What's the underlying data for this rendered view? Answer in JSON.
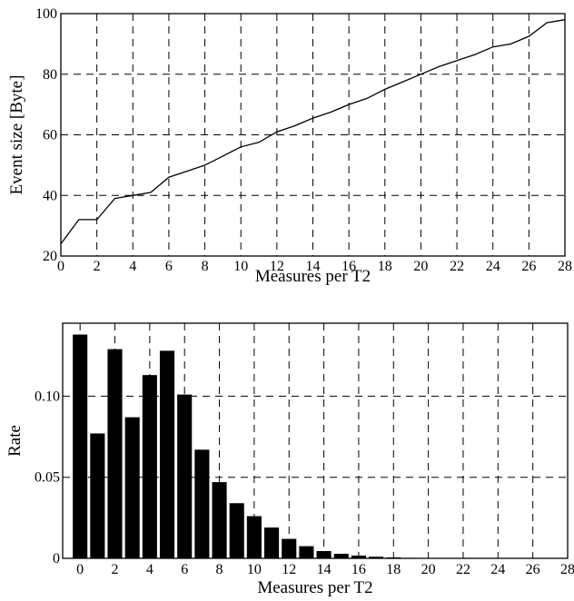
{
  "chart_data": [
    {
      "type": "line",
      "xlabel": "Measures per T2",
      "ylabel": "Event size [Byte]",
      "xlim": [
        0,
        28
      ],
      "ylim": [
        20,
        100
      ],
      "xticks": [
        "0",
        "2",
        "4",
        "6",
        "8",
        "10",
        "12",
        "14",
        "16",
        "18",
        "20",
        "22",
        "24",
        "26",
        "28"
      ],
      "yticks": [
        "20",
        "40",
        "60",
        "80",
        "100"
      ],
      "grid": true,
      "grid_style": "dashed",
      "x": [
        0,
        1,
        2,
        3,
        4,
        5,
        6,
        7,
        8,
        9,
        10,
        11,
        12,
        13,
        14,
        15,
        16,
        17,
        18,
        19,
        20,
        21,
        22,
        23,
        24,
        25,
        26,
        27,
        28
      ],
      "y": [
        24,
        32,
        32,
        39,
        40,
        41,
        46,
        48,
        50,
        53,
        56,
        57.5,
        61,
        63,
        65.5,
        67.5,
        70,
        72,
        75,
        77.5,
        80,
        82.5,
        84.5,
        86.5,
        89,
        90,
        92.5,
        97,
        98
      ]
    },
    {
      "type": "bar",
      "xlabel": "Measures per T2",
      "ylabel": "Rate",
      "xlim": [
        -1,
        28
      ],
      "ylim": [
        0,
        0.145
      ],
      "xticks": [
        "0",
        "2",
        "4",
        "6",
        "8",
        "10",
        "12",
        "14",
        "16",
        "18",
        "20",
        "22",
        "24",
        "26",
        "28"
      ],
      "yticks": [
        "0",
        "0.05",
        "0.10"
      ],
      "grid": true,
      "grid_style": "dashed",
      "categories": [
        0,
        1,
        2,
        3,
        4,
        5,
        6,
        7,
        8,
        9,
        10,
        11,
        12,
        13,
        14,
        15,
        16,
        17,
        18,
        19,
        20,
        21,
        22,
        23,
        24,
        25,
        26,
        27,
        28
      ],
      "values": [
        0.138,
        0.077,
        0.129,
        0.087,
        0.113,
        0.128,
        0.101,
        0.067,
        0.047,
        0.034,
        0.026,
        0.019,
        0.012,
        0.0075,
        0.0045,
        0.0028,
        0.0017,
        0.001,
        0.0006,
        0.0003,
        0.00015,
        0.0001,
        5e-05,
        3e-05,
        2e-05,
        1e-05,
        1e-05,
        1e-05,
        0
      ]
    }
  ]
}
